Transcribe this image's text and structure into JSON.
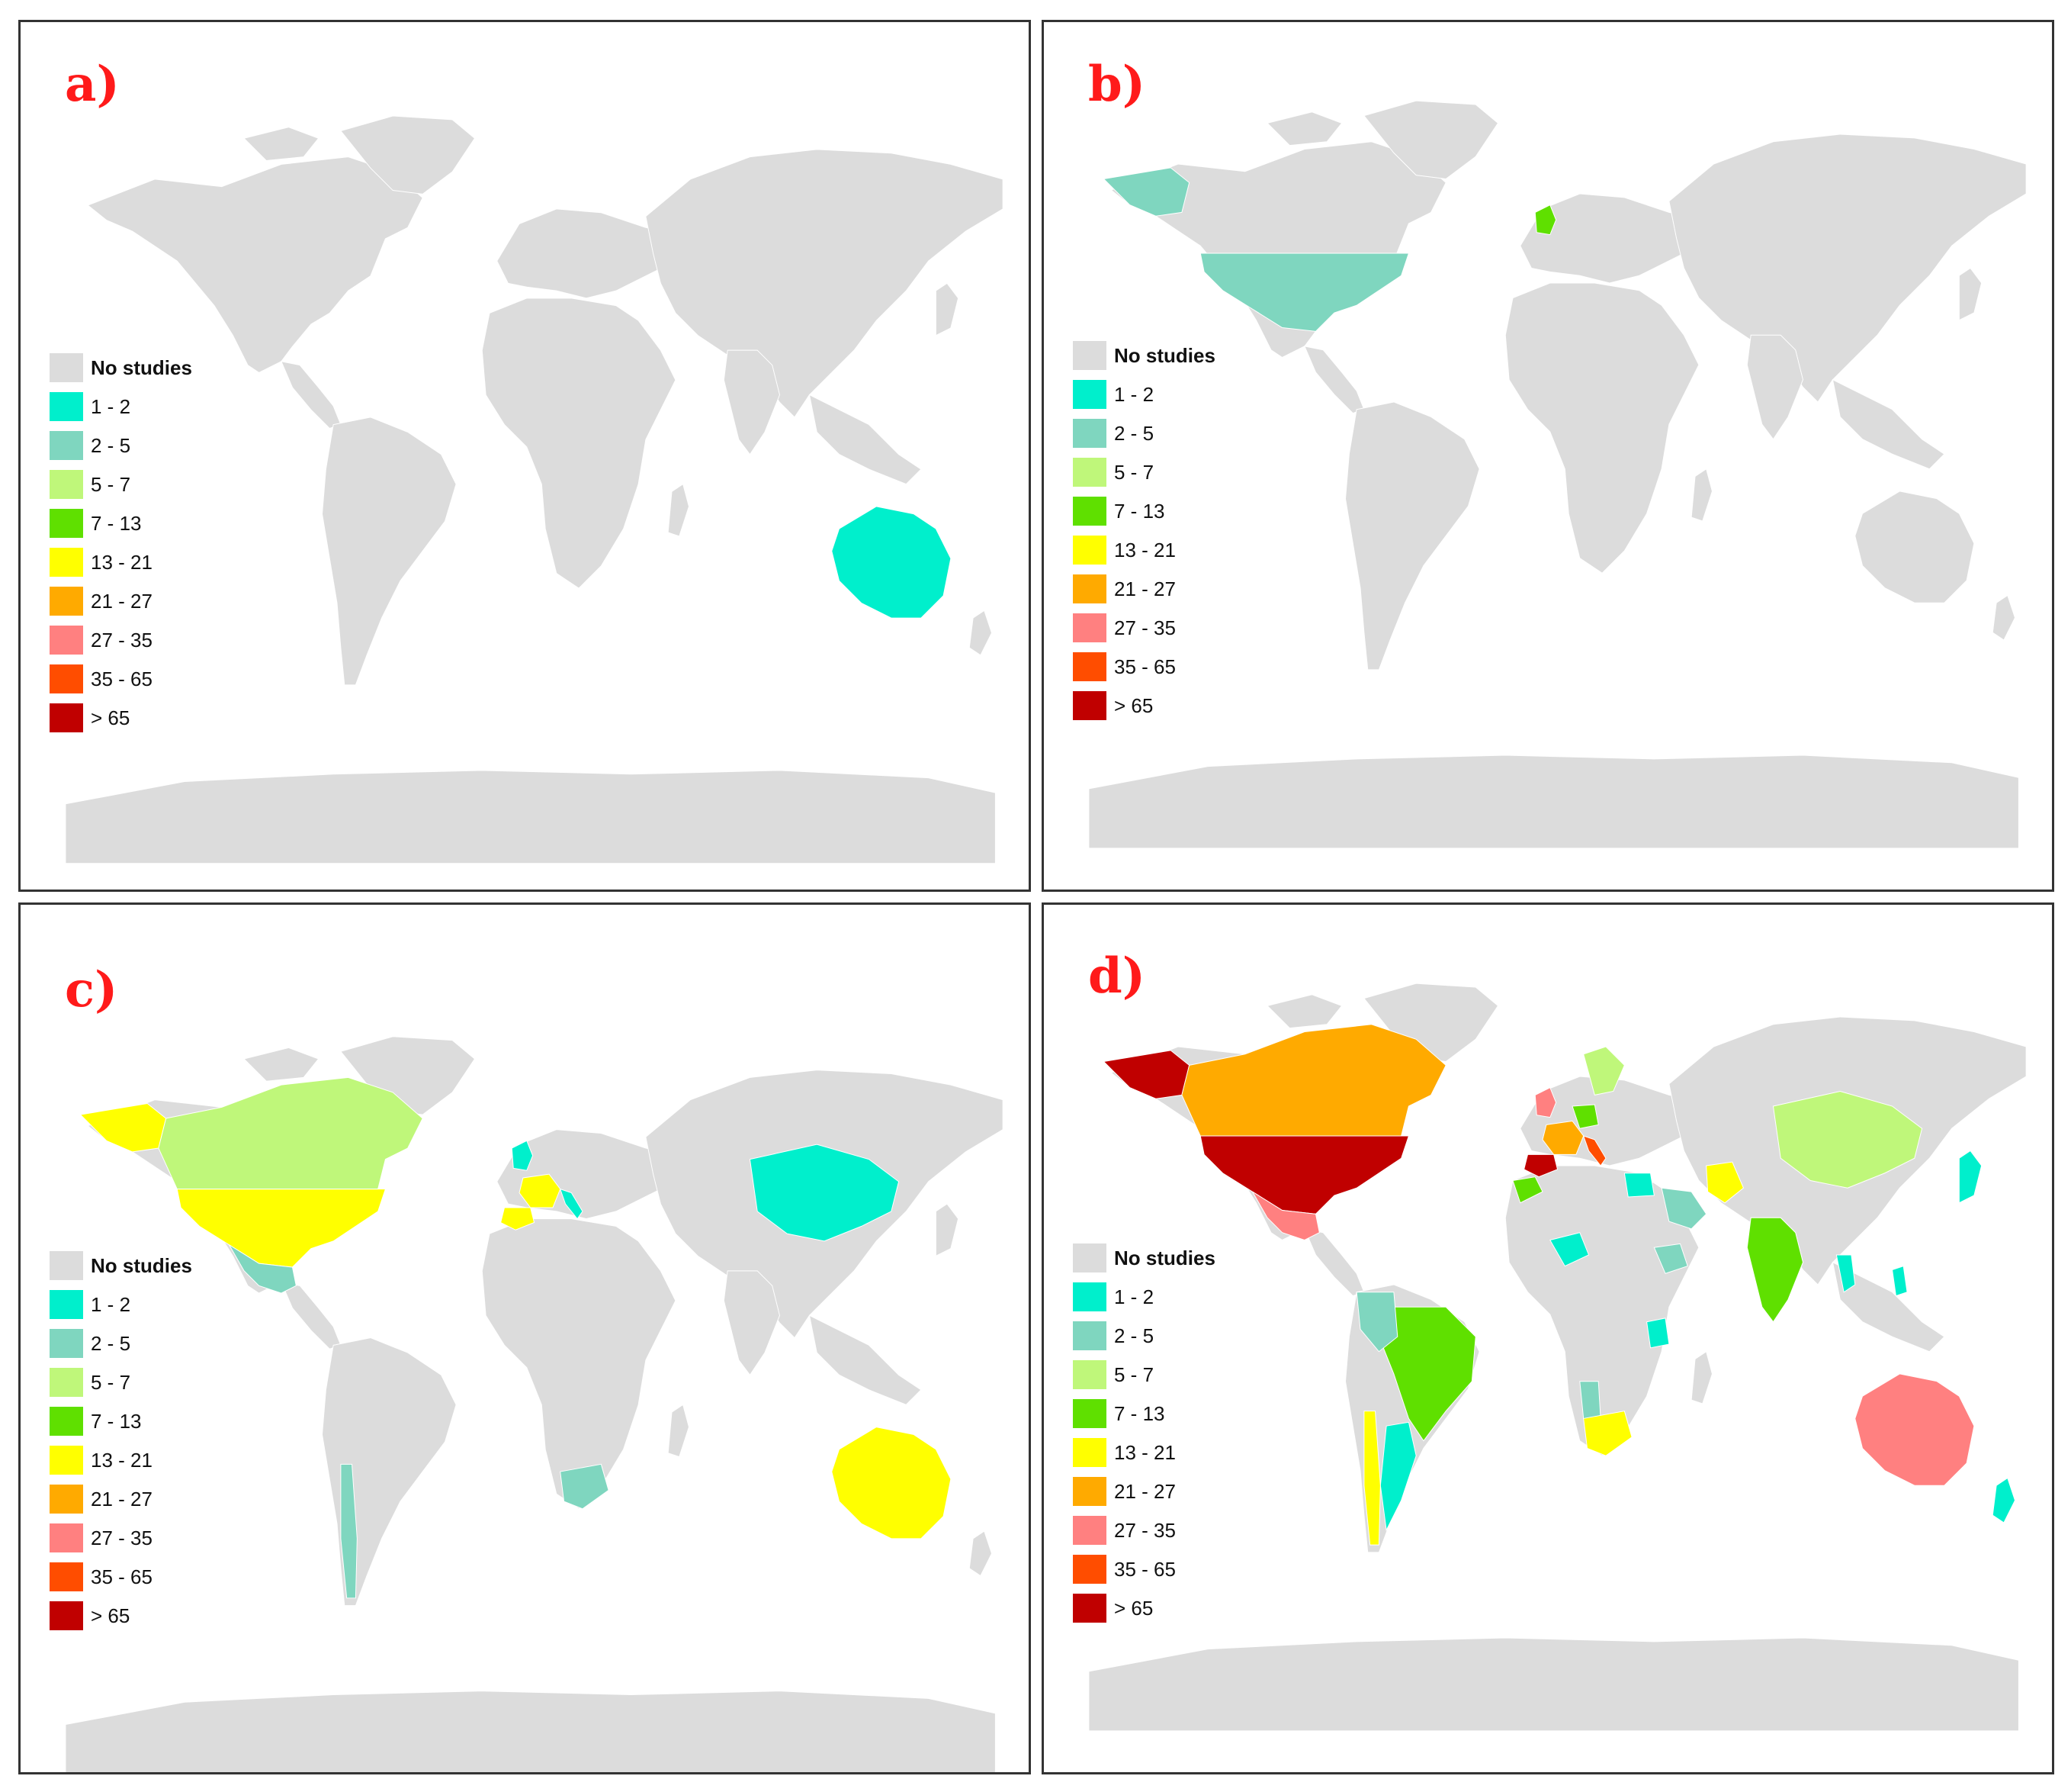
{
  "legend": [
    {
      "label": "No studies",
      "color": "#dcdcdc"
    },
    {
      "label": "1 - 2",
      "color": "#00efcc"
    },
    {
      "label": "2 - 5",
      "color": "#7fd6bf"
    },
    {
      "label": "5 - 7",
      "color": "#bff77a"
    },
    {
      "label": "7 - 13",
      "color": "#5fe000"
    },
    {
      "label": "13 - 21",
      "color": "#ffff00"
    },
    {
      "label": "21 - 27",
      "color": "#ffaa00"
    },
    {
      "label": "27 - 35",
      "color": "#ff8080"
    },
    {
      "label": "35 - 65",
      "color": "#ff4d00"
    },
    {
      "label": "> 65",
      "color": "#c00000"
    }
  ],
  "panels": [
    {
      "label": "a)",
      "shaded_regions": [
        {
          "region": "Australia",
          "class": "1 - 2"
        }
      ]
    },
    {
      "label": "b)",
      "shaded_regions": [
        {
          "region": "United States",
          "class": "2 - 5"
        },
        {
          "region": "Alaska",
          "class": "2 - 5"
        },
        {
          "region": "United Kingdom",
          "class": "7 - 13"
        }
      ]
    },
    {
      "label": "c)",
      "shaded_regions": [
        {
          "region": "United States",
          "class": "13 - 21"
        },
        {
          "region": "Alaska",
          "class": "13 - 21"
        },
        {
          "region": "Canada",
          "class": "5 - 7"
        },
        {
          "region": "Mexico",
          "class": "2 - 5"
        },
        {
          "region": "Chile",
          "class": "2 - 5"
        },
        {
          "region": "France",
          "class": "13 - 21"
        },
        {
          "region": "Spain",
          "class": "13 - 21"
        },
        {
          "region": "United Kingdom",
          "class": "1 - 2"
        },
        {
          "region": "Italy",
          "class": "1 - 2"
        },
        {
          "region": "China",
          "class": "1 - 2"
        },
        {
          "region": "South Africa",
          "class": "2 - 5"
        },
        {
          "region": "Australia",
          "class": "13 - 21"
        }
      ]
    },
    {
      "label": "d)",
      "shaded_regions": [
        {
          "region": "United States",
          "class": "> 65"
        },
        {
          "region": "Alaska",
          "class": "> 65"
        },
        {
          "region": "Canada",
          "class": "21 - 27"
        },
        {
          "region": "Mexico",
          "class": "27 - 35"
        },
        {
          "region": "Brazil",
          "class": "7 - 13"
        },
        {
          "region": "Argentina",
          "class": "1 - 2"
        },
        {
          "region": "Chile",
          "class": "13 - 21"
        },
        {
          "region": "Colombia/Peru",
          "class": "2 - 5"
        },
        {
          "region": "Spain",
          "class": "> 65"
        },
        {
          "region": "France",
          "class": "21 - 27"
        },
        {
          "region": "Italy",
          "class": "35 - 65"
        },
        {
          "region": "United Kingdom",
          "class": "27 - 35"
        },
        {
          "region": "Germany",
          "class": "7 - 13"
        },
        {
          "region": "Scandinavia",
          "class": "5 - 7"
        },
        {
          "region": "Morocco",
          "class": "7 - 13"
        },
        {
          "region": "Iran",
          "class": "13 - 21"
        },
        {
          "region": "Saudi Arabia",
          "class": "2 - 5"
        },
        {
          "region": "Egypt",
          "class": "1 - 2"
        },
        {
          "region": "India",
          "class": "7 - 13"
        },
        {
          "region": "China",
          "class": "5 - 7"
        },
        {
          "region": "Japan",
          "class": "1 - 2"
        },
        {
          "region": "Thailand",
          "class": "1 - 2"
        },
        {
          "region": "Philippines",
          "class": "1 - 2"
        },
        {
          "region": "Ethiopia",
          "class": "2 - 5"
        },
        {
          "region": "Tanzania",
          "class": "1 - 2"
        },
        {
          "region": "Nigeria/Niger",
          "class": "1 - 2"
        },
        {
          "region": "Namibia",
          "class": "2 - 5"
        },
        {
          "region": "South Africa",
          "class": "13 - 21"
        },
        {
          "region": "Australia",
          "class": "27 - 35"
        },
        {
          "region": "New Zealand",
          "class": "1 - 2"
        }
      ]
    }
  ]
}
